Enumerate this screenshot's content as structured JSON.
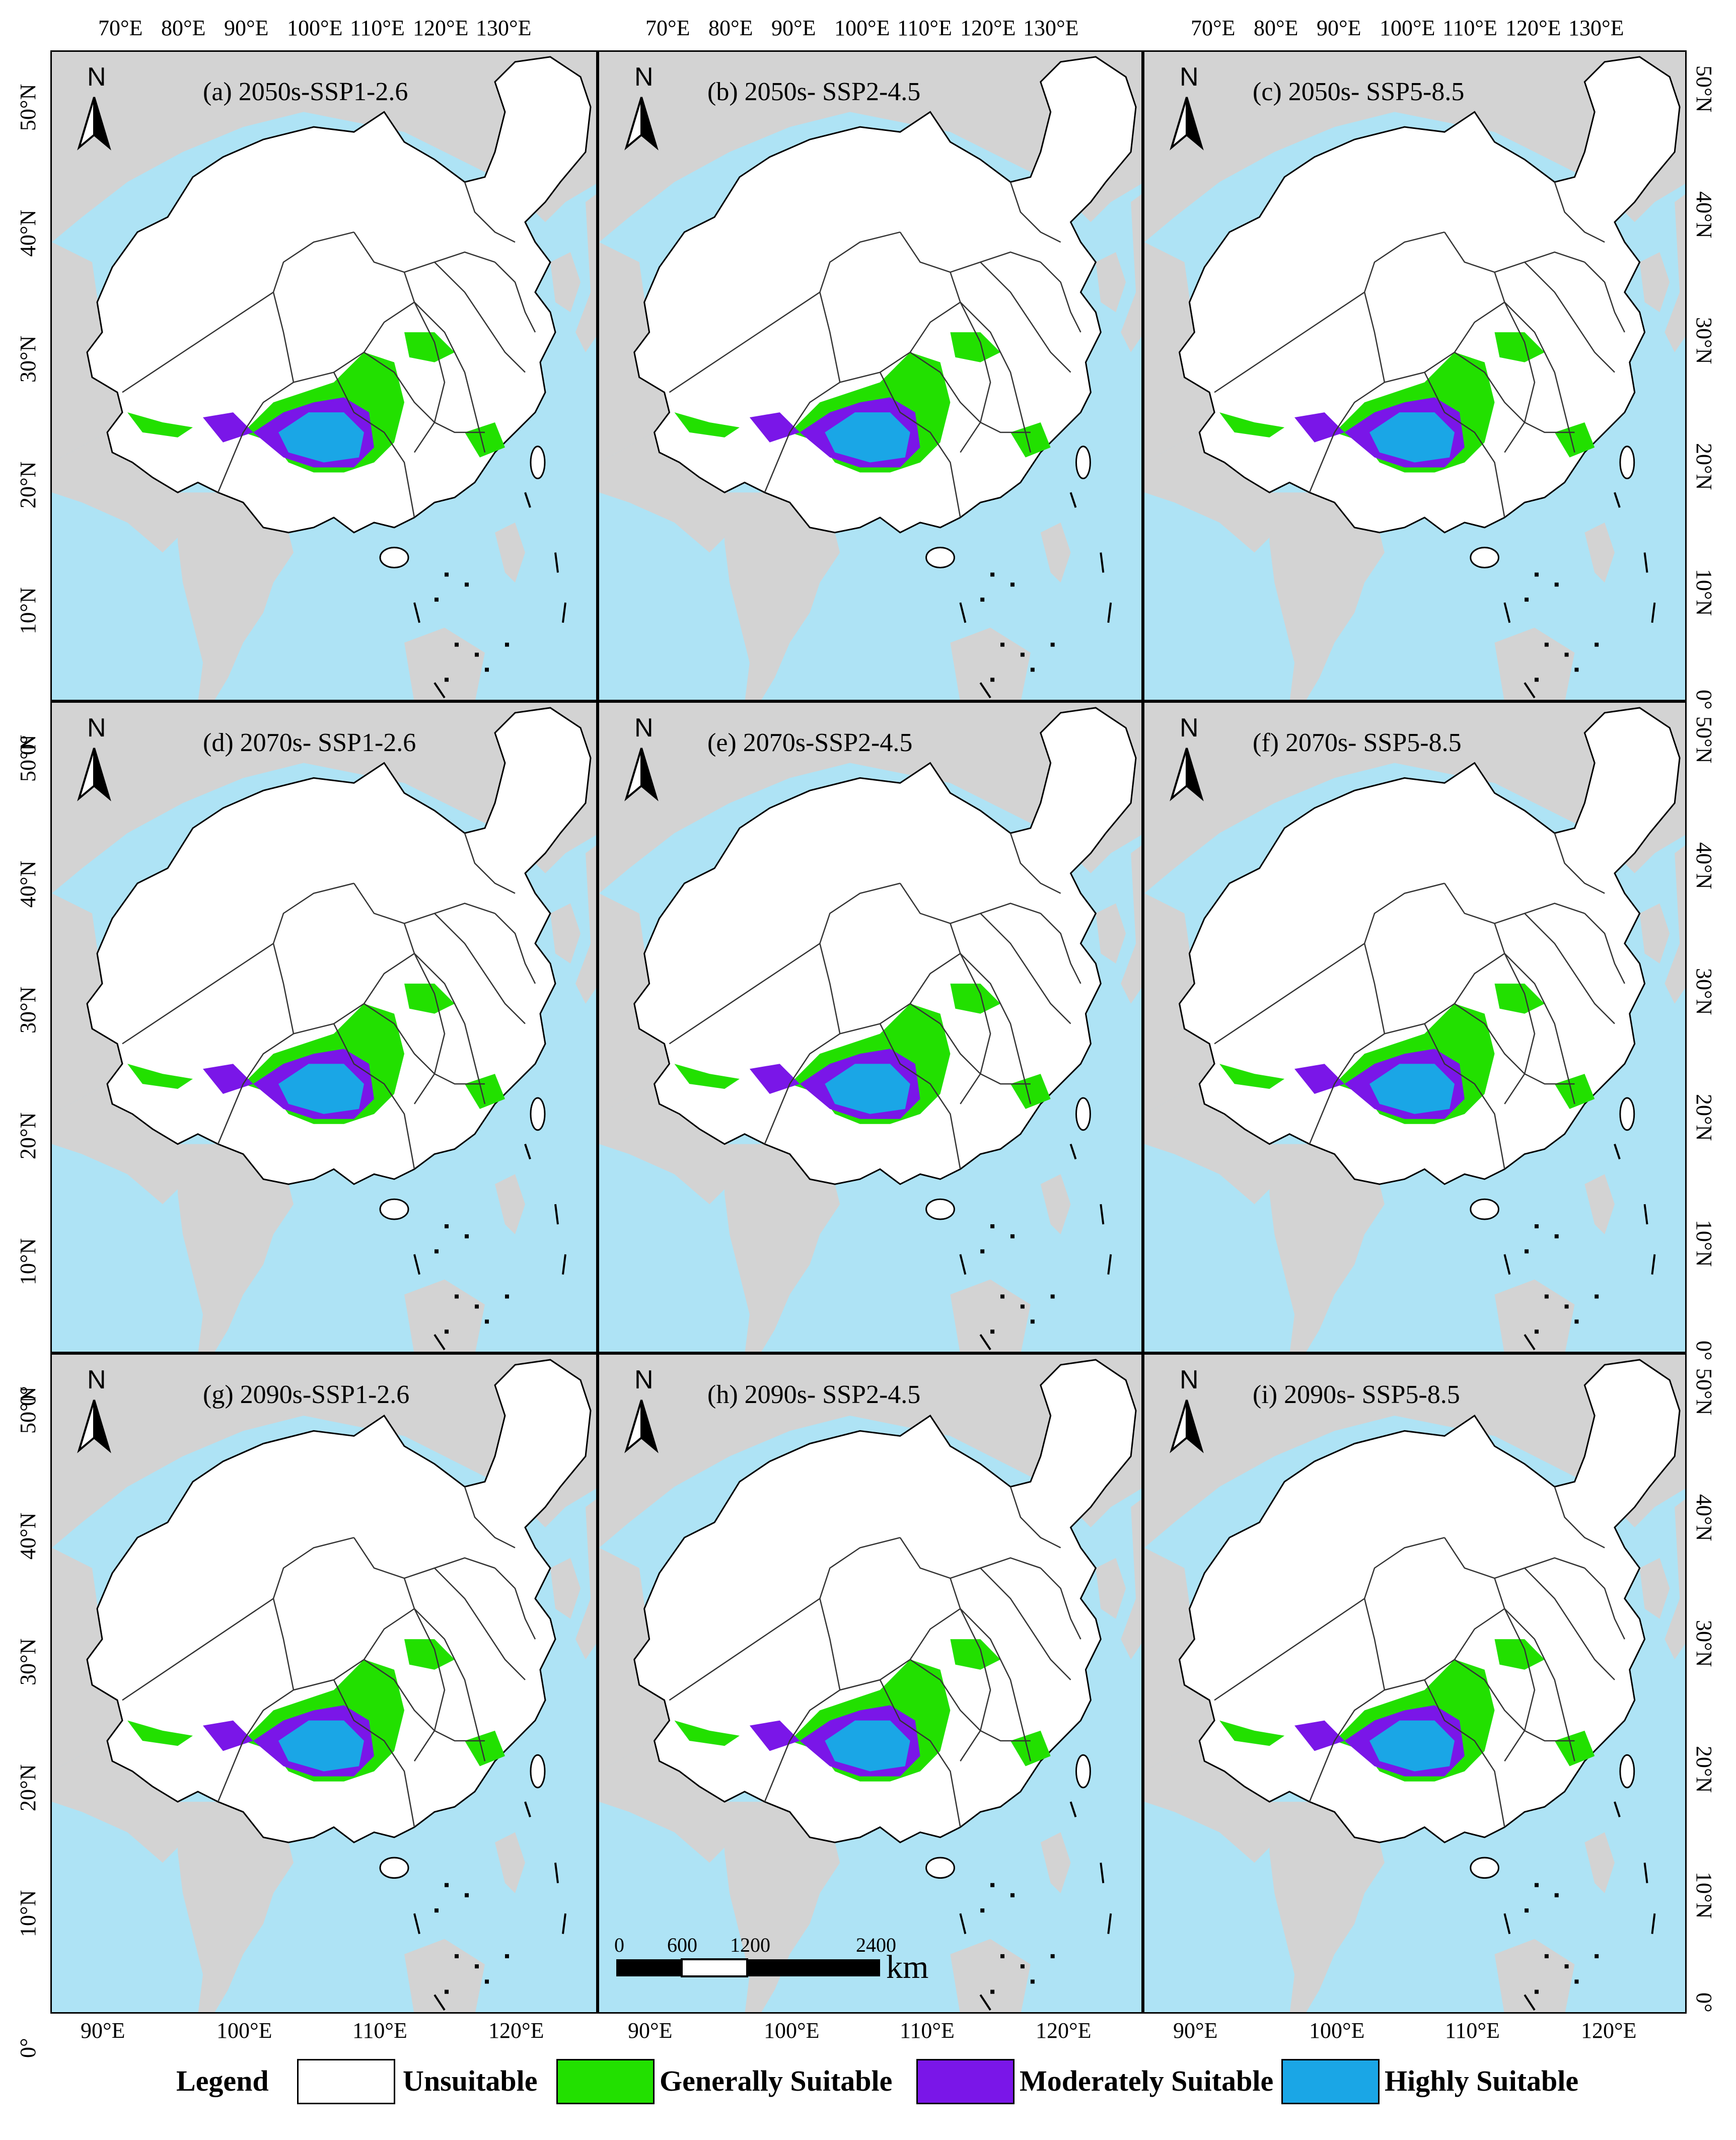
{
  "panels": [
    {
      "label": "(a) 2050s-SSP1-2.6",
      "north": "N"
    },
    {
      "label": "(b)  2050s- SSP2-4.5",
      "north": "N"
    },
    {
      "label": "(c) 2050s- SSP5-8.5",
      "north": "N"
    },
    {
      "label": "(d) 2070s- SSP1-2.6",
      "north": "N"
    },
    {
      "label": "(e)  2070s-SSP2-4.5",
      "north": "N"
    },
    {
      "label": "(f)  2070s- SSP5-8.5",
      "north": "N"
    },
    {
      "label": "(g) 2090s-SSP1-2.6",
      "north": "N"
    },
    {
      "label": "(h)  2090s- SSP2-4.5",
      "north": "N"
    },
    {
      "label": "(i)  2090s- SSP5-8.5",
      "north": "N"
    }
  ],
  "top_axis": [
    "70°E",
    "80°E",
    "90°E",
    "100°E",
    "110°E",
    "120°E",
    "130°E"
  ],
  "bottom_axis": [
    "90°E",
    "100°E",
    "110°E",
    "120°E"
  ],
  "left_axis": [
    "50°N",
    "40°N",
    "30°N",
    "20°N",
    "10°N",
    "0°"
  ],
  "right_axis": [
    "50°N",
    "40°N",
    "30°N",
    "20°N",
    "10°N",
    "0°"
  ],
  "scalebar": {
    "ticks": [
      "0",
      "600",
      "1200",
      "2400"
    ],
    "unit": "km"
  },
  "legend": {
    "title": "Legend",
    "items": [
      {
        "label": "Unsuitable",
        "color": "#ffffff"
      },
      {
        "label": "Generally Suitable",
        "color": "#22e000"
      },
      {
        "label": "Moderately Suitable",
        "color": "#7a16e8"
      },
      {
        "label": "Highly Suitable",
        "color": "#1aa6e6"
      }
    ]
  },
  "colors": {
    "sea": "#aee3f5",
    "land_outside": "#d3d3d3",
    "china": "#ffffff",
    "border": "#000000"
  }
}
